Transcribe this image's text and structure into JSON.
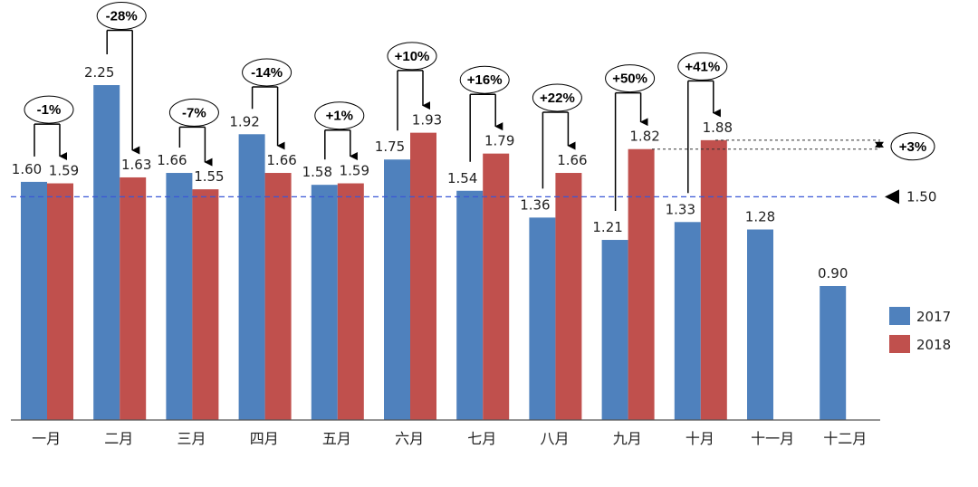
{
  "chart_data": {
    "type": "bar",
    "categories": [
      "一月",
      "二月",
      "三月",
      "四月",
      "五月",
      "六月",
      "七月",
      "八月",
      "九月",
      "十月",
      "十一月",
      "十二月"
    ],
    "series": [
      {
        "name": "2017",
        "color": "#4f81bd",
        "values": [
          1.6,
          2.25,
          1.66,
          1.92,
          1.58,
          1.75,
          1.54,
          1.36,
          1.21,
          1.33,
          1.28,
          0.9
        ],
        "labels": [
          "1.60",
          "2.25",
          "1.66",
          "1.92",
          "1.58",
          "1.75",
          "1.54",
          "1.36",
          "1.21",
          "1.33",
          "1.28",
          "0.90"
        ]
      },
      {
        "name": "2018",
        "color": "#c0504d",
        "values": [
          1.59,
          1.63,
          1.55,
          1.66,
          1.59,
          1.93,
          1.79,
          1.66,
          1.82,
          1.88,
          null,
          null
        ],
        "labels": [
          "1.59",
          "1.63",
          "1.55",
          "1.66",
          "1.59",
          "1.93",
          "1.79",
          "1.66",
          "1.82",
          "1.88",
          "",
          ""
        ]
      }
    ],
    "changes": [
      "-1%",
      "-28%",
      "-7%",
      "-14%",
      "+1%",
      "+10%",
      "+16%",
      "+22%",
      "+50%",
      "+41%"
    ],
    "change_levels": [
      2.0,
      2.63,
      1.98,
      2.25,
      1.96,
      2.36,
      2.2,
      2.08,
      2.21,
      2.29
    ],
    "reference_line": {
      "value": 1.5,
      "label": "1.50",
      "color": "#3a57d6"
    },
    "comparison": {
      "from": 1.82,
      "to": 1.88,
      "label": "+3%"
    },
    "ylim": [
      0,
      2.8
    ],
    "legend_position": "right",
    "title": "",
    "xlabel": "",
    "ylabel": ""
  }
}
